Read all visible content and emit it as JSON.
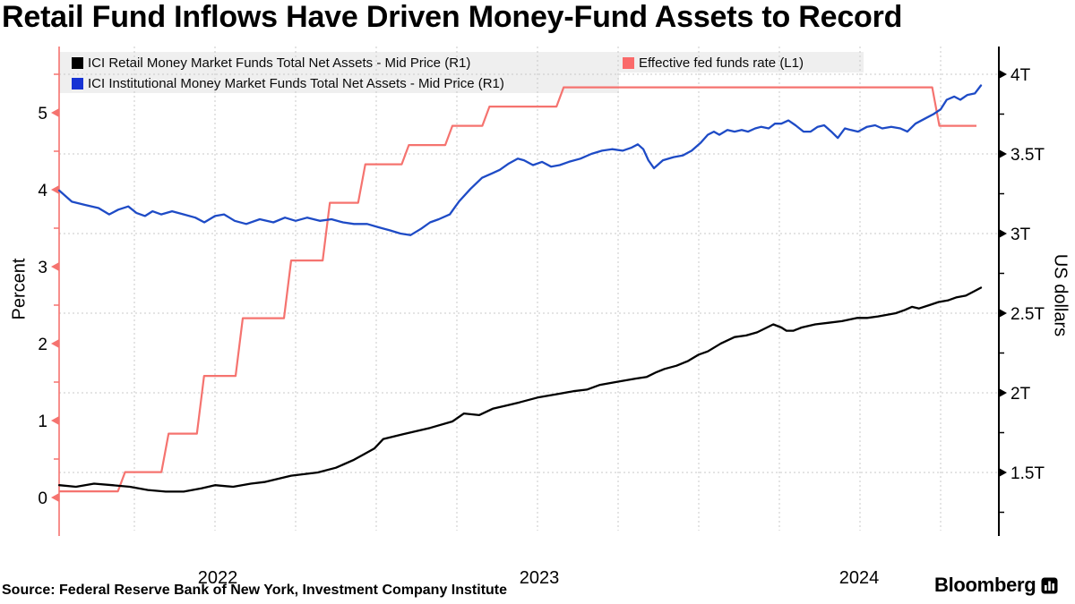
{
  "title": "Retail Fund Inflows Have Driven Money-Fund Assets to Record",
  "source": "Source: Federal Reserve Bank of New York, Investment Company Institute",
  "brand": {
    "name": "Bloomberg"
  },
  "legend": {
    "retail": {
      "label": "ICI Retail Money Market Funds Total Net Assets - Mid Price (R1)",
      "color": "#000000"
    },
    "institutional": {
      "label": "ICI Institutional Money Market Funds Total Net Assets - Mid Price (R1)",
      "color": "#1733d4"
    },
    "fedfunds": {
      "label": "Effective fed funds rate  (L1)",
      "color": "#fa6a6a"
    }
  },
  "chart_data": {
    "type": "line",
    "title": "Retail Fund Inflows Have Driven Money-Fund Assets to Record",
    "grid": true,
    "legend_position": "top",
    "x_axis": {
      "year_labels": [
        "2022",
        "2023",
        "2024"
      ],
      "range_years": [
        2022.0,
        2024.95
      ],
      "quarter_gridlines": [
        2022.25,
        2022.5,
        2022.75,
        2023.0,
        2023.25,
        2023.5,
        2023.75,
        2024.0,
        2024.25,
        2024.5,
        2024.75
      ]
    },
    "left_axis": {
      "title": "Percent",
      "color": "#f5736f",
      "ticks": [
        0,
        1,
        2,
        3,
        4,
        5
      ],
      "tick_labels": [
        "0",
        "1",
        "2",
        "3",
        "4",
        "5"
      ],
      "minor_ticks": [
        0.5,
        1.5,
        2.5,
        3.5,
        4.5,
        5.5
      ],
      "range": [
        -0.45,
        5.85
      ]
    },
    "right_axis": {
      "title": "US dollars",
      "color": "#000000",
      "ticks": [
        1.5,
        2,
        2.5,
        3,
        3.5,
        4
      ],
      "tick_labels": [
        "1.5T",
        "2T",
        "2.5T",
        "3T",
        "3.5T",
        "4T"
      ],
      "minor_ticks": [
        1.25,
        1.75,
        2.25,
        2.75,
        3.25,
        3.75
      ],
      "range": [
        1.15,
        4.18
      ]
    },
    "series": [
      {
        "name": "Effective fed funds rate",
        "legend_ref": "fedfunds",
        "axis": "left",
        "unit": "percent",
        "style": "step",
        "color": "#f5736f",
        "points": [
          [
            2022.017,
            0.08
          ],
          [
            2022.21,
            0.33
          ],
          [
            2022.345,
            0.83
          ],
          [
            2022.455,
            1.58
          ],
          [
            2022.575,
            2.33
          ],
          [
            2022.725,
            3.08
          ],
          [
            2022.845,
            3.83
          ],
          [
            2022.955,
            4.33
          ],
          [
            2023.09,
            4.58
          ],
          [
            2023.225,
            4.83
          ],
          [
            2023.34,
            5.08
          ],
          [
            2023.57,
            5.33
          ],
          [
            2024.735,
            4.83
          ],
          [
            2024.861,
            4.83
          ]
        ]
      },
      {
        "name": "ICI Retail Money Market Funds Total Net Assets",
        "legend_ref": "retail",
        "axis": "right",
        "unit": "trillion USD",
        "style": "line",
        "color": "#000000",
        "points": [
          [
            2022.017,
            1.42
          ],
          [
            2022.069,
            1.41
          ],
          [
            2022.125,
            1.43
          ],
          [
            2022.181,
            1.42
          ],
          [
            2022.236,
            1.41
          ],
          [
            2022.292,
            1.39
          ],
          [
            2022.347,
            1.38
          ],
          [
            2022.403,
            1.38
          ],
          [
            2022.458,
            1.4
          ],
          [
            2022.5,
            1.42
          ],
          [
            2022.556,
            1.41
          ],
          [
            2022.611,
            1.43
          ],
          [
            2022.653,
            1.44
          ],
          [
            2022.736,
            1.48
          ],
          [
            2022.819,
            1.5
          ],
          [
            2022.875,
            1.53
          ],
          [
            2022.931,
            1.58
          ],
          [
            2022.994,
            1.65
          ],
          [
            2023.022,
            1.71
          ],
          [
            2023.083,
            1.74
          ],
          [
            2023.167,
            1.78
          ],
          [
            2023.236,
            1.82
          ],
          [
            2023.272,
            1.87
          ],
          [
            2023.319,
            1.86
          ],
          [
            2023.361,
            1.9
          ],
          [
            2023.403,
            1.92
          ],
          [
            2023.444,
            1.94
          ],
          [
            2023.5,
            1.97
          ],
          [
            2023.556,
            1.99
          ],
          [
            2023.611,
            2.01
          ],
          [
            2023.653,
            2.02
          ],
          [
            2023.694,
            2.05
          ],
          [
            2023.75,
            2.07
          ],
          [
            2023.806,
            2.09
          ],
          [
            2023.839,
            2.1
          ],
          [
            2023.869,
            2.13
          ],
          [
            2023.894,
            2.15
          ],
          [
            2023.931,
            2.17
          ],
          [
            2023.967,
            2.2
          ],
          [
            2024.0,
            2.24
          ],
          [
            2024.028,
            2.26
          ],
          [
            2024.069,
            2.31
          ],
          [
            2024.111,
            2.35
          ],
          [
            2024.147,
            2.36
          ],
          [
            2024.181,
            2.38
          ],
          [
            2024.231,
            2.43
          ],
          [
            2024.256,
            2.41
          ],
          [
            2024.272,
            2.39
          ],
          [
            2024.294,
            2.39
          ],
          [
            2024.319,
            2.41
          ],
          [
            2024.361,
            2.43
          ],
          [
            2024.403,
            2.44
          ],
          [
            2024.444,
            2.45
          ],
          [
            2024.492,
            2.47
          ],
          [
            2024.522,
            2.47
          ],
          [
            2024.556,
            2.48
          ],
          [
            2024.611,
            2.5
          ],
          [
            2024.639,
            2.52
          ],
          [
            2024.661,
            2.54
          ],
          [
            2024.683,
            2.53
          ],
          [
            2024.714,
            2.55
          ],
          [
            2024.744,
            2.57
          ],
          [
            2024.772,
            2.58
          ],
          [
            2024.8,
            2.6
          ],
          [
            2024.828,
            2.61
          ],
          [
            2024.856,
            2.64
          ],
          [
            2024.875,
            2.66
          ]
        ]
      },
      {
        "name": "ICI Institutional Money Market Funds Total Net Assets",
        "legend_ref": "institutional",
        "axis": "right",
        "unit": "trillion USD",
        "style": "line",
        "color": "#1e4bc6",
        "points": [
          [
            2022.017,
            3.27
          ],
          [
            2022.056,
            3.2
          ],
          [
            2022.097,
            3.18
          ],
          [
            2022.139,
            3.16
          ],
          [
            2022.172,
            3.12
          ],
          [
            2022.2,
            3.15
          ],
          [
            2022.231,
            3.17
          ],
          [
            2022.256,
            3.13
          ],
          [
            2022.283,
            3.11
          ],
          [
            2022.306,
            3.14
          ],
          [
            2022.333,
            3.12
          ],
          [
            2022.367,
            3.14
          ],
          [
            2022.403,
            3.12
          ],
          [
            2022.439,
            3.1
          ],
          [
            2022.467,
            3.07
          ],
          [
            2022.5,
            3.11
          ],
          [
            2022.528,
            3.12
          ],
          [
            2022.561,
            3.08
          ],
          [
            2022.597,
            3.06
          ],
          [
            2022.639,
            3.09
          ],
          [
            2022.681,
            3.07
          ],
          [
            2022.717,
            3.1
          ],
          [
            2022.75,
            3.08
          ],
          [
            2022.786,
            3.1
          ],
          [
            2022.825,
            3.08
          ],
          [
            2022.861,
            3.09
          ],
          [
            2022.897,
            3.07
          ],
          [
            2022.931,
            3.06
          ],
          [
            2022.972,
            3.06
          ],
          [
            2023.006,
            3.04
          ],
          [
            2023.042,
            3.02
          ],
          [
            2023.075,
            3.0
          ],
          [
            2023.106,
            2.99
          ],
          [
            2023.139,
            3.03
          ],
          [
            2023.167,
            3.07
          ],
          [
            2023.194,
            3.09
          ],
          [
            2023.228,
            3.12
          ],
          [
            2023.256,
            3.2
          ],
          [
            2023.292,
            3.28
          ],
          [
            2023.328,
            3.35
          ],
          [
            2023.361,
            3.38
          ],
          [
            2023.383,
            3.4
          ],
          [
            2023.411,
            3.44
          ],
          [
            2023.439,
            3.47
          ],
          [
            2023.458,
            3.46
          ],
          [
            2023.486,
            3.43
          ],
          [
            2023.514,
            3.45
          ],
          [
            2023.542,
            3.42
          ],
          [
            2023.569,
            3.43
          ],
          [
            2023.597,
            3.45
          ],
          [
            2023.633,
            3.47
          ],
          [
            2023.667,
            3.5
          ],
          [
            2023.7,
            3.52
          ],
          [
            2023.731,
            3.53
          ],
          [
            2023.764,
            3.52
          ],
          [
            2023.792,
            3.54
          ],
          [
            2023.811,
            3.56
          ],
          [
            2023.828,
            3.53
          ],
          [
            2023.844,
            3.46
          ],
          [
            2023.861,
            3.41
          ],
          [
            2023.889,
            3.46
          ],
          [
            2023.922,
            3.48
          ],
          [
            2023.95,
            3.49
          ],
          [
            2023.978,
            3.52
          ],
          [
            2024.006,
            3.57
          ],
          [
            2024.028,
            3.62
          ],
          [
            2024.047,
            3.64
          ],
          [
            2024.064,
            3.62
          ],
          [
            2024.089,
            3.65
          ],
          [
            2024.111,
            3.64
          ],
          [
            2024.133,
            3.65
          ],
          [
            2024.153,
            3.64
          ],
          [
            2024.175,
            3.66
          ],
          [
            2024.194,
            3.67
          ],
          [
            2024.217,
            3.66
          ],
          [
            2024.236,
            3.69
          ],
          [
            2024.256,
            3.69
          ],
          [
            2024.278,
            3.71
          ],
          [
            2024.3,
            3.68
          ],
          [
            2024.325,
            3.64
          ],
          [
            2024.347,
            3.64
          ],
          [
            2024.369,
            3.67
          ],
          [
            2024.389,
            3.68
          ],
          [
            2024.411,
            3.64
          ],
          [
            2024.431,
            3.6
          ],
          [
            2024.453,
            3.66
          ],
          [
            2024.472,
            3.65
          ],
          [
            2024.494,
            3.64
          ],
          [
            2024.522,
            3.67
          ],
          [
            2024.547,
            3.68
          ],
          [
            2024.569,
            3.66
          ],
          [
            2024.597,
            3.67
          ],
          [
            2024.625,
            3.66
          ],
          [
            2024.647,
            3.64
          ],
          [
            2024.672,
            3.69
          ],
          [
            2024.7,
            3.72
          ],
          [
            2024.728,
            3.75
          ],
          [
            2024.75,
            3.78
          ],
          [
            2024.769,
            3.84
          ],
          [
            2024.792,
            3.86
          ],
          [
            2024.811,
            3.84
          ],
          [
            2024.833,
            3.87
          ],
          [
            2024.856,
            3.88
          ],
          [
            2024.875,
            3.93
          ]
        ]
      }
    ]
  }
}
